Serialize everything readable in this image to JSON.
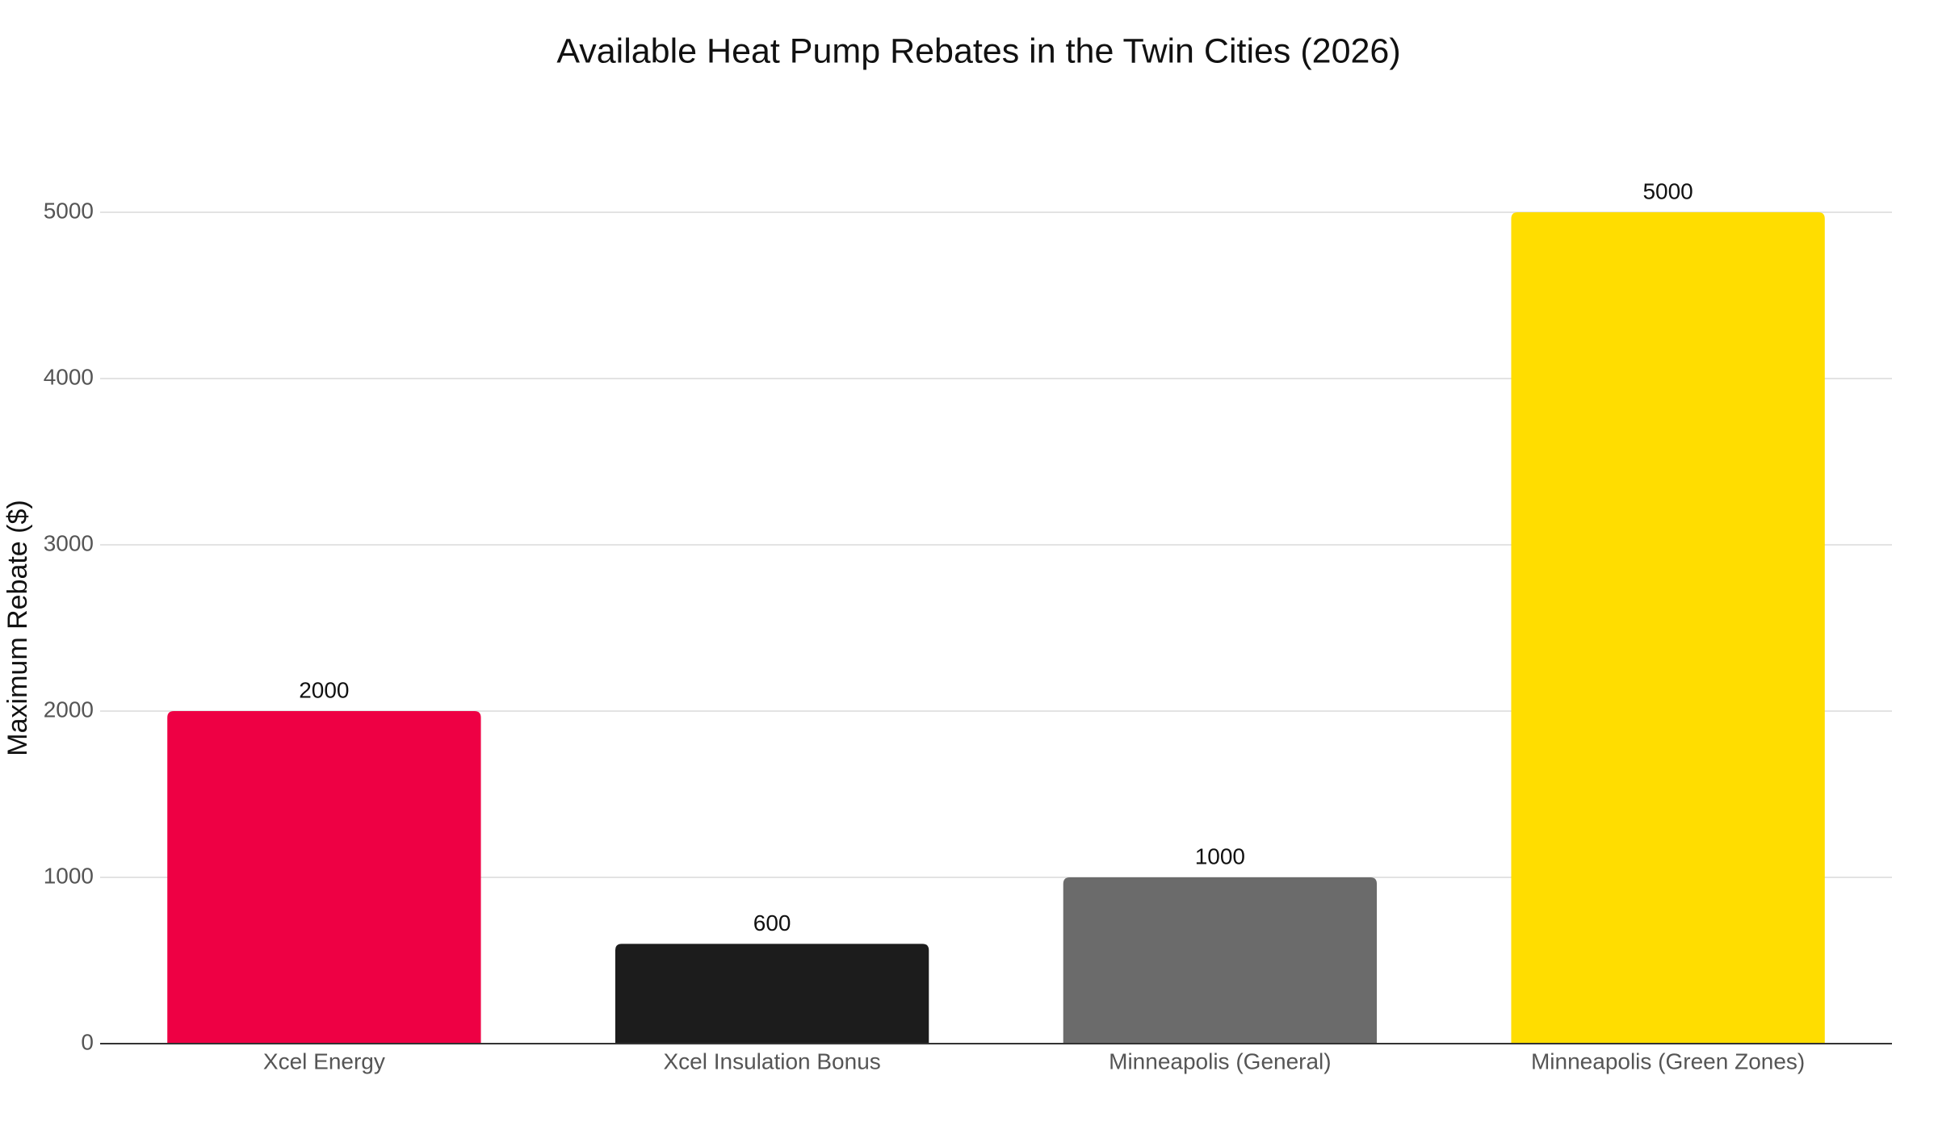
{
  "chart_data": {
    "type": "bar",
    "title": "Available Heat Pump Rebates in the Twin Cities (2026)",
    "y_label": "Maximum Rebate ($)",
    "categories": [
      "Xcel Energy",
      "Xcel Insulation Bonus",
      "Minneapolis (General)",
      "Minneapolis (Green Zones)"
    ],
    "values": [
      2000,
      600,
      1000,
      5000
    ],
    "colors": [
      "#ee0044",
      "#1c1c1c",
      "#6b6b6b",
      "#ffdd00"
    ],
    "ylim": [
      0,
      5000
    ],
    "yticks": [
      0,
      1000,
      2000,
      3000,
      4000,
      5000
    ],
    "grid": true
  }
}
